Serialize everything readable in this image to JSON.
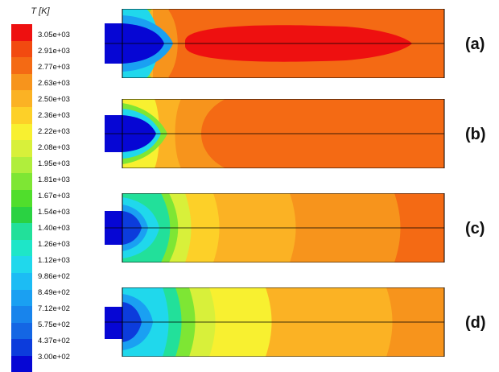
{
  "legend": {
    "title": "T [K]",
    "ticks": [
      "3.05e+03",
      "2.91e+03",
      "2.77e+03",
      "2.63e+03",
      "2.50e+03",
      "2.36e+03",
      "2.22e+03",
      "2.08e+03",
      "1.95e+03",
      "1.81e+03",
      "1.67e+03",
      "1.54e+03",
      "1.40e+03",
      "1.26e+03",
      "1.12e+03",
      "9.86e+02",
      "8.49e+02",
      "7.12e+02",
      "5.75e+02",
      "4.37e+02",
      "3.00e+02"
    ],
    "colors": [
      "#ee1010",
      "#f24a10",
      "#f46a14",
      "#f7941c",
      "#fbb224",
      "#fdd028",
      "#f8f030",
      "#d8f03a",
      "#b0ee3c",
      "#7ee634",
      "#50de2c",
      "#2ad242",
      "#22e09a",
      "#1ee6c8",
      "#20d8ec",
      "#1cbcf4",
      "#1aa0f2",
      "#1884ec",
      "#1466e4",
      "#0c3cdc",
      "#0606d4"
    ]
  },
  "panels": [
    {
      "id": "a",
      "label": "(a)"
    },
    {
      "id": "b",
      "label": "(b)"
    },
    {
      "id": "c",
      "label": "(c)"
    },
    {
      "id": "d",
      "label": "(d)"
    }
  ]
}
